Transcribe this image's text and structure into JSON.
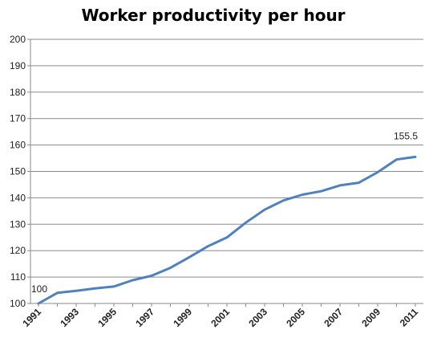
{
  "chart_data": {
    "type": "line",
    "title": "Worker productivity per hour",
    "xlabel": "",
    "ylabel": "",
    "ylim": [
      100,
      200
    ],
    "y_ticks": [
      "100",
      "110",
      "120",
      "130",
      "140",
      "150",
      "160",
      "170",
      "180",
      "190",
      "200"
    ],
    "x": [
      1991,
      1992,
      1993,
      1994,
      1995,
      1996,
      1997,
      1998,
      1999,
      2000,
      2001,
      2002,
      2003,
      2004,
      2005,
      2006,
      2007,
      2008,
      2009,
      2010,
      2011
    ],
    "x_tick_labels": [
      "1991",
      "1993",
      "1995",
      "1997",
      "1999",
      "2001",
      "2003",
      "2005",
      "2007",
      "2009",
      "2011"
    ],
    "grid": true,
    "series": [
      {
        "values": [
          100,
          104,
          104.8,
          105.7,
          106.4,
          108.8,
          110.5,
          113.5,
          117.5,
          121.7,
          125,
          130.6,
          135.5,
          139,
          141.2,
          142.5,
          144.7,
          145.7,
          149.7,
          154.5,
          155.5
        ],
        "color": "#4f81bd"
      }
    ],
    "data_labels": [
      {
        "x": 1991,
        "text": "100"
      },
      {
        "x": 2011,
        "text": "155.5"
      }
    ]
  }
}
